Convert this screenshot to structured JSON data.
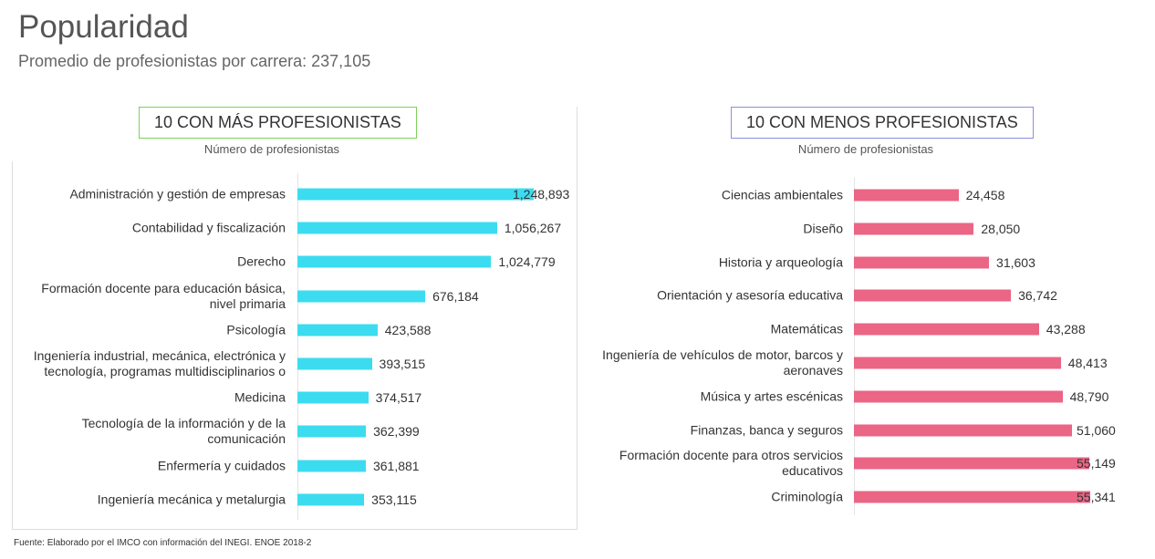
{
  "title": "Popularidad",
  "subtitle": "Promedio de profesionistas por carrera: 237,105",
  "source": "Fuente: Elaborado por el IMCO con información del INEGI. ENOE 2018-2",
  "chart_data": [
    {
      "type": "bar",
      "orientation": "horizontal",
      "title": "10 CON MÁS PROFESIONISTAS",
      "title_border_color": "#7ed05a",
      "axis_label": "Número de profesionistas",
      "categories": [
        "Administración y gestión de empresas",
        "Contabilidad y fiscalización",
        "Derecho",
        "Formación docente para educación básica, nivel primaria",
        "Psicología",
        "Ingeniería industrial, mecánica, electrónica y tecnología, programas multidisciplinarios o",
        "Medicina",
        "Tecnología de la información y de la comunicación",
        "Enfermería y cuidados",
        "Ingeniería mecánica y metalurgia"
      ],
      "values": [
        1248893,
        1056267,
        1024779,
        676184,
        423588,
        393515,
        374517,
        362399,
        361881,
        353115
      ],
      "value_labels": [
        "1,248,893",
        "1,056,267",
        "1,024,779",
        "676,184",
        "423,588",
        "393,515",
        "374,517",
        "362,399",
        "361,881",
        "353,115"
      ],
      "color": "#3cdcf0",
      "xlim": [
        0,
        1250000
      ]
    },
    {
      "type": "bar",
      "orientation": "horizontal",
      "title": "10 CON MENOS PROFESIONISTAS",
      "title_border_color": "#8a8fe0",
      "axis_label": "Número de profesionistas",
      "categories": [
        "Ciencias ambientales",
        "Diseño",
        "Historia y arqueología",
        "Orientación y asesoría educativa",
        "Matemáticas",
        "Ingeniería de vehículos de motor, barcos y aeronaves",
        "Música y artes escénicas",
        "Finanzas, banca y seguros",
        "Formación docente para otros servicios educativos",
        "Criminología"
      ],
      "values": [
        24458,
        28050,
        31603,
        36742,
        43288,
        48413,
        48790,
        51060,
        55149,
        55341
      ],
      "value_labels": [
        "24,458",
        "28,050",
        "31,603",
        "36,742",
        "43,288",
        "48,413",
        "48,790",
        "51,060",
        "55,149",
        "55,341"
      ],
      "color": "#eb6585",
      "xlim": [
        0,
        55500
      ]
    }
  ]
}
